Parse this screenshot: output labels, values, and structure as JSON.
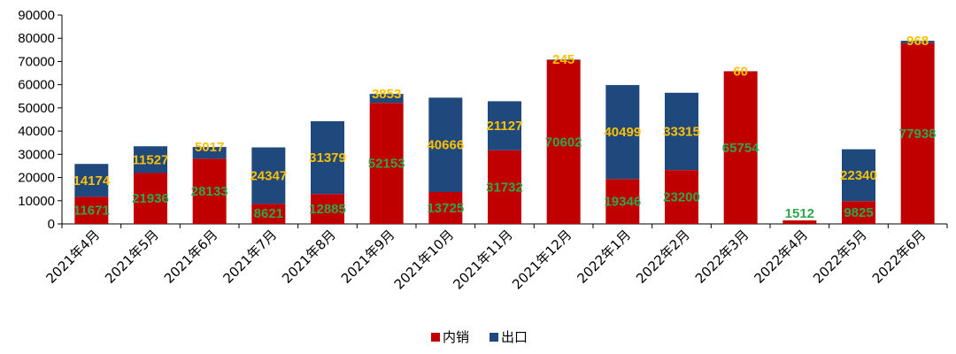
{
  "chart_data": {
    "type": "bar",
    "stacked": true,
    "categories": [
      "2021年4月",
      "2021年5月",
      "2021年6月",
      "2021年7月",
      "2021年8月",
      "2021年9月",
      "2021年10月",
      "2021年11月",
      "2021年12月",
      "2022年1月",
      "2022年2月",
      "2022年3月",
      "2022年4月",
      "2022年5月",
      "2022年6月"
    ],
    "series": [
      {
        "name": "内销",
        "color": "#C00000",
        "label_color": "#2EA64F",
        "values": [
          11671,
          21936,
          28133,
          8621,
          12885,
          52153,
          13725,
          31732,
          70602,
          19346,
          23200,
          65754,
          1512,
          9825,
          77938
        ]
      },
      {
        "name": "出口",
        "color": "#1F497D",
        "label_color": "#FFC000",
        "values": [
          14174,
          11527,
          5017,
          24347,
          31379,
          3853,
          40666,
          21127,
          245,
          40499,
          33315,
          60,
          0,
          22340,
          968
        ]
      }
    ],
    "segment_labels": {
      "内销": [
        "11671",
        "21936",
        "28133",
        "8621",
        "12885",
        "52153",
        "13725",
        "31732",
        "70602",
        "19346",
        "23200",
        "65754",
        "1512",
        "9825",
        "77938"
      ],
      "出口": [
        "14174",
        "11527",
        "5017",
        "24347",
        "31379",
        "3853",
        "40666",
        "21127",
        "245",
        "40499",
        "33315",
        "60",
        "",
        "22340",
        "968"
      ]
    },
    "y_ticks": [
      "0",
      "10000",
      "20000",
      "30000",
      "40000",
      "50000",
      "60000",
      "70000",
      "80000",
      "90000"
    ],
    "ylim": [
      0,
      90000
    ],
    "title": "",
    "xlabel": "",
    "ylabel": "",
    "legend_position": "bottom-center",
    "grid": false
  }
}
